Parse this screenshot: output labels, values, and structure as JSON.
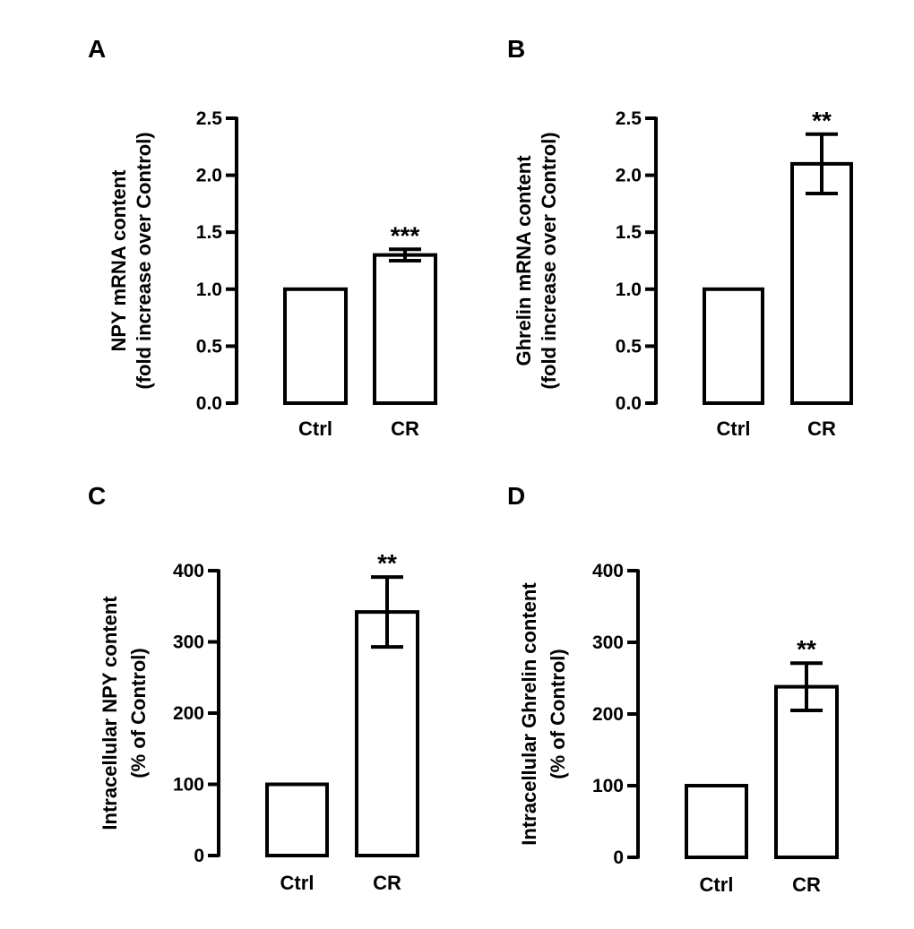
{
  "chart_data": [
    {
      "type": "bar",
      "panel_label": "A",
      "ylabel_line1": "NPY mRNA content",
      "ylabel_line2": "(fold increase over Control)",
      "ylim": [
        0,
        2.5
      ],
      "ticks": [
        "0.0",
        "0.5",
        "1.0",
        "1.5",
        "2.0",
        "2.5"
      ],
      "tick_values": [
        0,
        0.5,
        1.0,
        1.5,
        2.0,
        2.5
      ],
      "categories": [
        "Ctrl",
        "CR"
      ],
      "values": [
        1.0,
        1.3
      ],
      "errors": [
        0,
        0.05
      ],
      "significance": [
        "",
        "***"
      ]
    },
    {
      "type": "bar",
      "panel_label": "B",
      "ylabel_line1": "Ghrelin mRNA content",
      "ylabel_line2": "(fold increase over Control)",
      "ylim": [
        0,
        2.5
      ],
      "ticks": [
        "0.0",
        "0.5",
        "1.0",
        "1.5",
        "2.0",
        "2.5"
      ],
      "tick_values": [
        0,
        0.5,
        1.0,
        1.5,
        2.0,
        2.5
      ],
      "categories": [
        "Ctrl",
        "CR"
      ],
      "values": [
        1.0,
        2.1
      ],
      "errors": [
        0,
        0.26
      ],
      "significance": [
        "",
        "**"
      ]
    },
    {
      "type": "bar",
      "panel_label": "C",
      "ylabel_line1": "Intracellular NPY content",
      "ylabel_line2": "(% of Control)",
      "ylim": [
        0,
        400
      ],
      "ticks": [
        "0",
        "100",
        "200",
        "300",
        "400"
      ],
      "tick_values": [
        0,
        100,
        200,
        300,
        400
      ],
      "categories": [
        "Ctrl",
        "CR"
      ],
      "values": [
        100,
        342
      ],
      "errors": [
        0,
        49
      ],
      "significance": [
        "",
        "**"
      ]
    },
    {
      "type": "bar",
      "panel_label": "D",
      "ylabel_line1": "Intracellular Ghrelin content",
      "ylabel_line2": "(% of Control)",
      "ylim": [
        0,
        400
      ],
      "ticks": [
        "0",
        "100",
        "200",
        "300",
        "400"
      ],
      "tick_values": [
        0,
        100,
        200,
        300,
        400
      ],
      "categories": [
        "Ctrl",
        "CR"
      ],
      "values": [
        100,
        238
      ],
      "errors": [
        0,
        33
      ],
      "significance": [
        "",
        "**"
      ]
    }
  ]
}
